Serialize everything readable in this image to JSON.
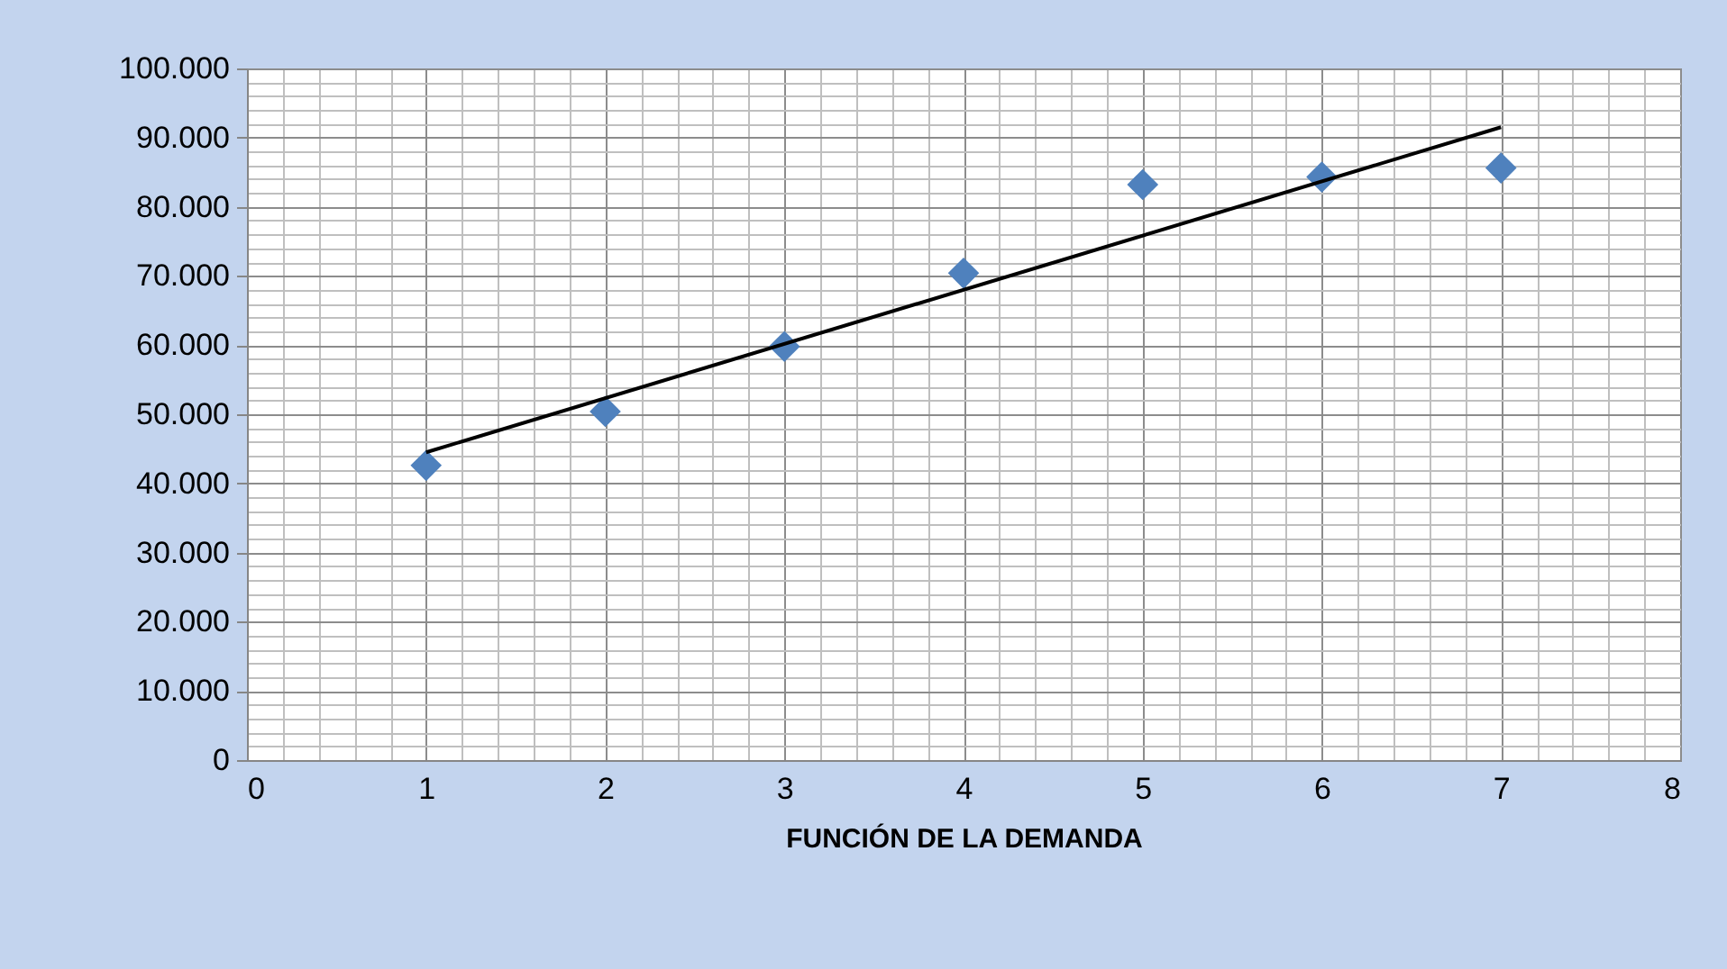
{
  "chart_data": {
    "type": "scatter",
    "xlabel": "FUNCIÓN DE LA DEMANDA",
    "marker": "diamond",
    "grid": true,
    "xlim": [
      0,
      8
    ],
    "ylim": [
      0,
      100000
    ],
    "xticks": [
      0,
      {
        "value": 0.2,
        "label": null
      },
      {
        "value": 0.4,
        "label": null
      },
      {
        "value": 0.6,
        "label": null
      },
      {
        "value": 0.8,
        "label": null
      },
      1,
      {
        "value": 1.2,
        "label": null
      },
      {
        "value": 1.4,
        "label": null
      },
      {
        "value": 1.6,
        "label": null
      },
      {
        "value": 1.8,
        "label": null
      },
      2,
      {
        "value": 2.2,
        "label": null
      },
      {
        "value": 2.4,
        "label": null
      },
      {
        "value": 2.6,
        "label": null
      },
      {
        "value": 2.8,
        "label": null
      },
      3,
      {
        "value": 3.2,
        "label": null
      },
      {
        "value": 3.4,
        "label": null
      },
      {
        "value": 3.6,
        "label": null
      },
      {
        "value": 3.8,
        "label": null
      },
      4,
      {
        "value": 4.2,
        "label": null
      },
      {
        "value": 4.4,
        "label": null
      },
      {
        "value": 4.6,
        "label": null
      },
      {
        "value": 4.8,
        "label": null
      },
      5,
      {
        "value": 5.2,
        "label": null
      },
      {
        "value": 5.4,
        "label": null
      },
      {
        "value": 5.6,
        "label": null
      },
      {
        "value": 5.8,
        "label": null
      },
      6,
      {
        "value": 6.2,
        "label": null
      },
      {
        "value": 6.4,
        "label": null
      },
      {
        "value": 6.6,
        "label": null
      },
      {
        "value": 6.8,
        "label": null
      },
      7,
      {
        "value": 7.2,
        "label": null
      },
      {
        "value": 7.4,
        "label": null
      },
      {
        "value": 7.6,
        "label": null
      },
      {
        "value": 7.8,
        "label": null
      },
      8
    ],
    "yticks": [
      {
        "value": 0,
        "label": "0"
      },
      {
        "value": 2000,
        "label": null
      },
      {
        "value": 4000,
        "label": null
      },
      {
        "value": 6000,
        "label": null
      },
      {
        "value": 8000,
        "label": null
      },
      {
        "value": 10000,
        "label": "10.000"
      },
      {
        "value": 12000,
        "label": null
      },
      {
        "value": 14000,
        "label": null
      },
      {
        "value": 16000,
        "label": null
      },
      {
        "value": 18000,
        "label": null
      },
      {
        "value": 20000,
        "label": "20.000"
      },
      {
        "value": 22000,
        "label": null
      },
      {
        "value": 24000,
        "label": null
      },
      {
        "value": 26000,
        "label": null
      },
      {
        "value": 28000,
        "label": null
      },
      {
        "value": 30000,
        "label": "30.000"
      },
      {
        "value": 32000,
        "label": null
      },
      {
        "value": 34000,
        "label": null
      },
      {
        "value": 36000,
        "label": null
      },
      {
        "value": 38000,
        "label": null
      },
      {
        "value": 40000,
        "label": "40.000"
      },
      {
        "value": 42000,
        "label": null
      },
      {
        "value": 44000,
        "label": null
      },
      {
        "value": 46000,
        "label": null
      },
      {
        "value": 48000,
        "label": null
      },
      {
        "value": 50000,
        "label": "50.000"
      },
      {
        "value": 52000,
        "label": null
      },
      {
        "value": 54000,
        "label": null
      },
      {
        "value": 56000,
        "label": null
      },
      {
        "value": 58000,
        "label": null
      },
      {
        "value": 60000,
        "label": "60.000"
      },
      {
        "value": 62000,
        "label": null
      },
      {
        "value": 64000,
        "label": null
      },
      {
        "value": 66000,
        "label": null
      },
      {
        "value": 68000,
        "label": null
      },
      {
        "value": 70000,
        "label": "70.000"
      },
      {
        "value": 72000,
        "label": null
      },
      {
        "value": 74000,
        "label": null
      },
      {
        "value": 76000,
        "label": null
      },
      {
        "value": 78000,
        "label": null
      },
      {
        "value": 80000,
        "label": "80.000"
      },
      {
        "value": 82000,
        "label": null
      },
      {
        "value": 84000,
        "label": null
      },
      {
        "value": 86000,
        "label": null
      },
      {
        "value": 88000,
        "label": null
      },
      {
        "value": 90000,
        "label": "90.000"
      },
      {
        "value": 92000,
        "label": null
      },
      {
        "value": 94000,
        "label": null
      },
      {
        "value": 96000,
        "label": null
      },
      {
        "value": 98000,
        "label": null
      },
      {
        "value": 100000,
        "label": "100.000"
      }
    ],
    "series": [
      {
        "color": "#4f81bd",
        "x": [
          1,
          2,
          3,
          4,
          5,
          6,
          7
        ],
        "values": [
          42600,
          50400,
          59800,
          70400,
          83200,
          84300,
          85600
        ]
      },
      {
        "type": "line",
        "marker": "none",
        "line_style": "solid",
        "color": "#000000",
        "x": [
          1,
          7
        ],
        "values": [
          44500,
          91500
        ]
      }
    ]
  }
}
